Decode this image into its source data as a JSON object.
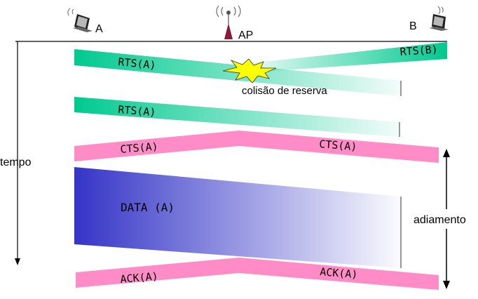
{
  "nodes": {
    "a": "A",
    "ap": "AP",
    "b": "B"
  },
  "labels": {
    "time_axis": "tempo",
    "collision": "colisão de reserva",
    "deferral": "adiamento"
  },
  "frames": {
    "rts_a_first": "RTS(A)",
    "rts_b": "RTS(B)",
    "rts_a_second": "RTS(A)",
    "cts_left": "CTS(A)",
    "cts_right": "CTS(A)",
    "data": "DATA (A)",
    "ack_left": "ACK(A)",
    "ack_right": "ACK(A)"
  },
  "colors": {
    "rts": "#00c98f",
    "cts_ack": "#ff8cc6",
    "data": "#3434c8",
    "collision": "#ffff00",
    "ap_tower": "#8b1a3a"
  },
  "icons": {
    "station_a": "laptop-icon",
    "station_b": "laptop-icon",
    "access_point": "antenna-icon",
    "collision": "starburst-icon"
  }
}
